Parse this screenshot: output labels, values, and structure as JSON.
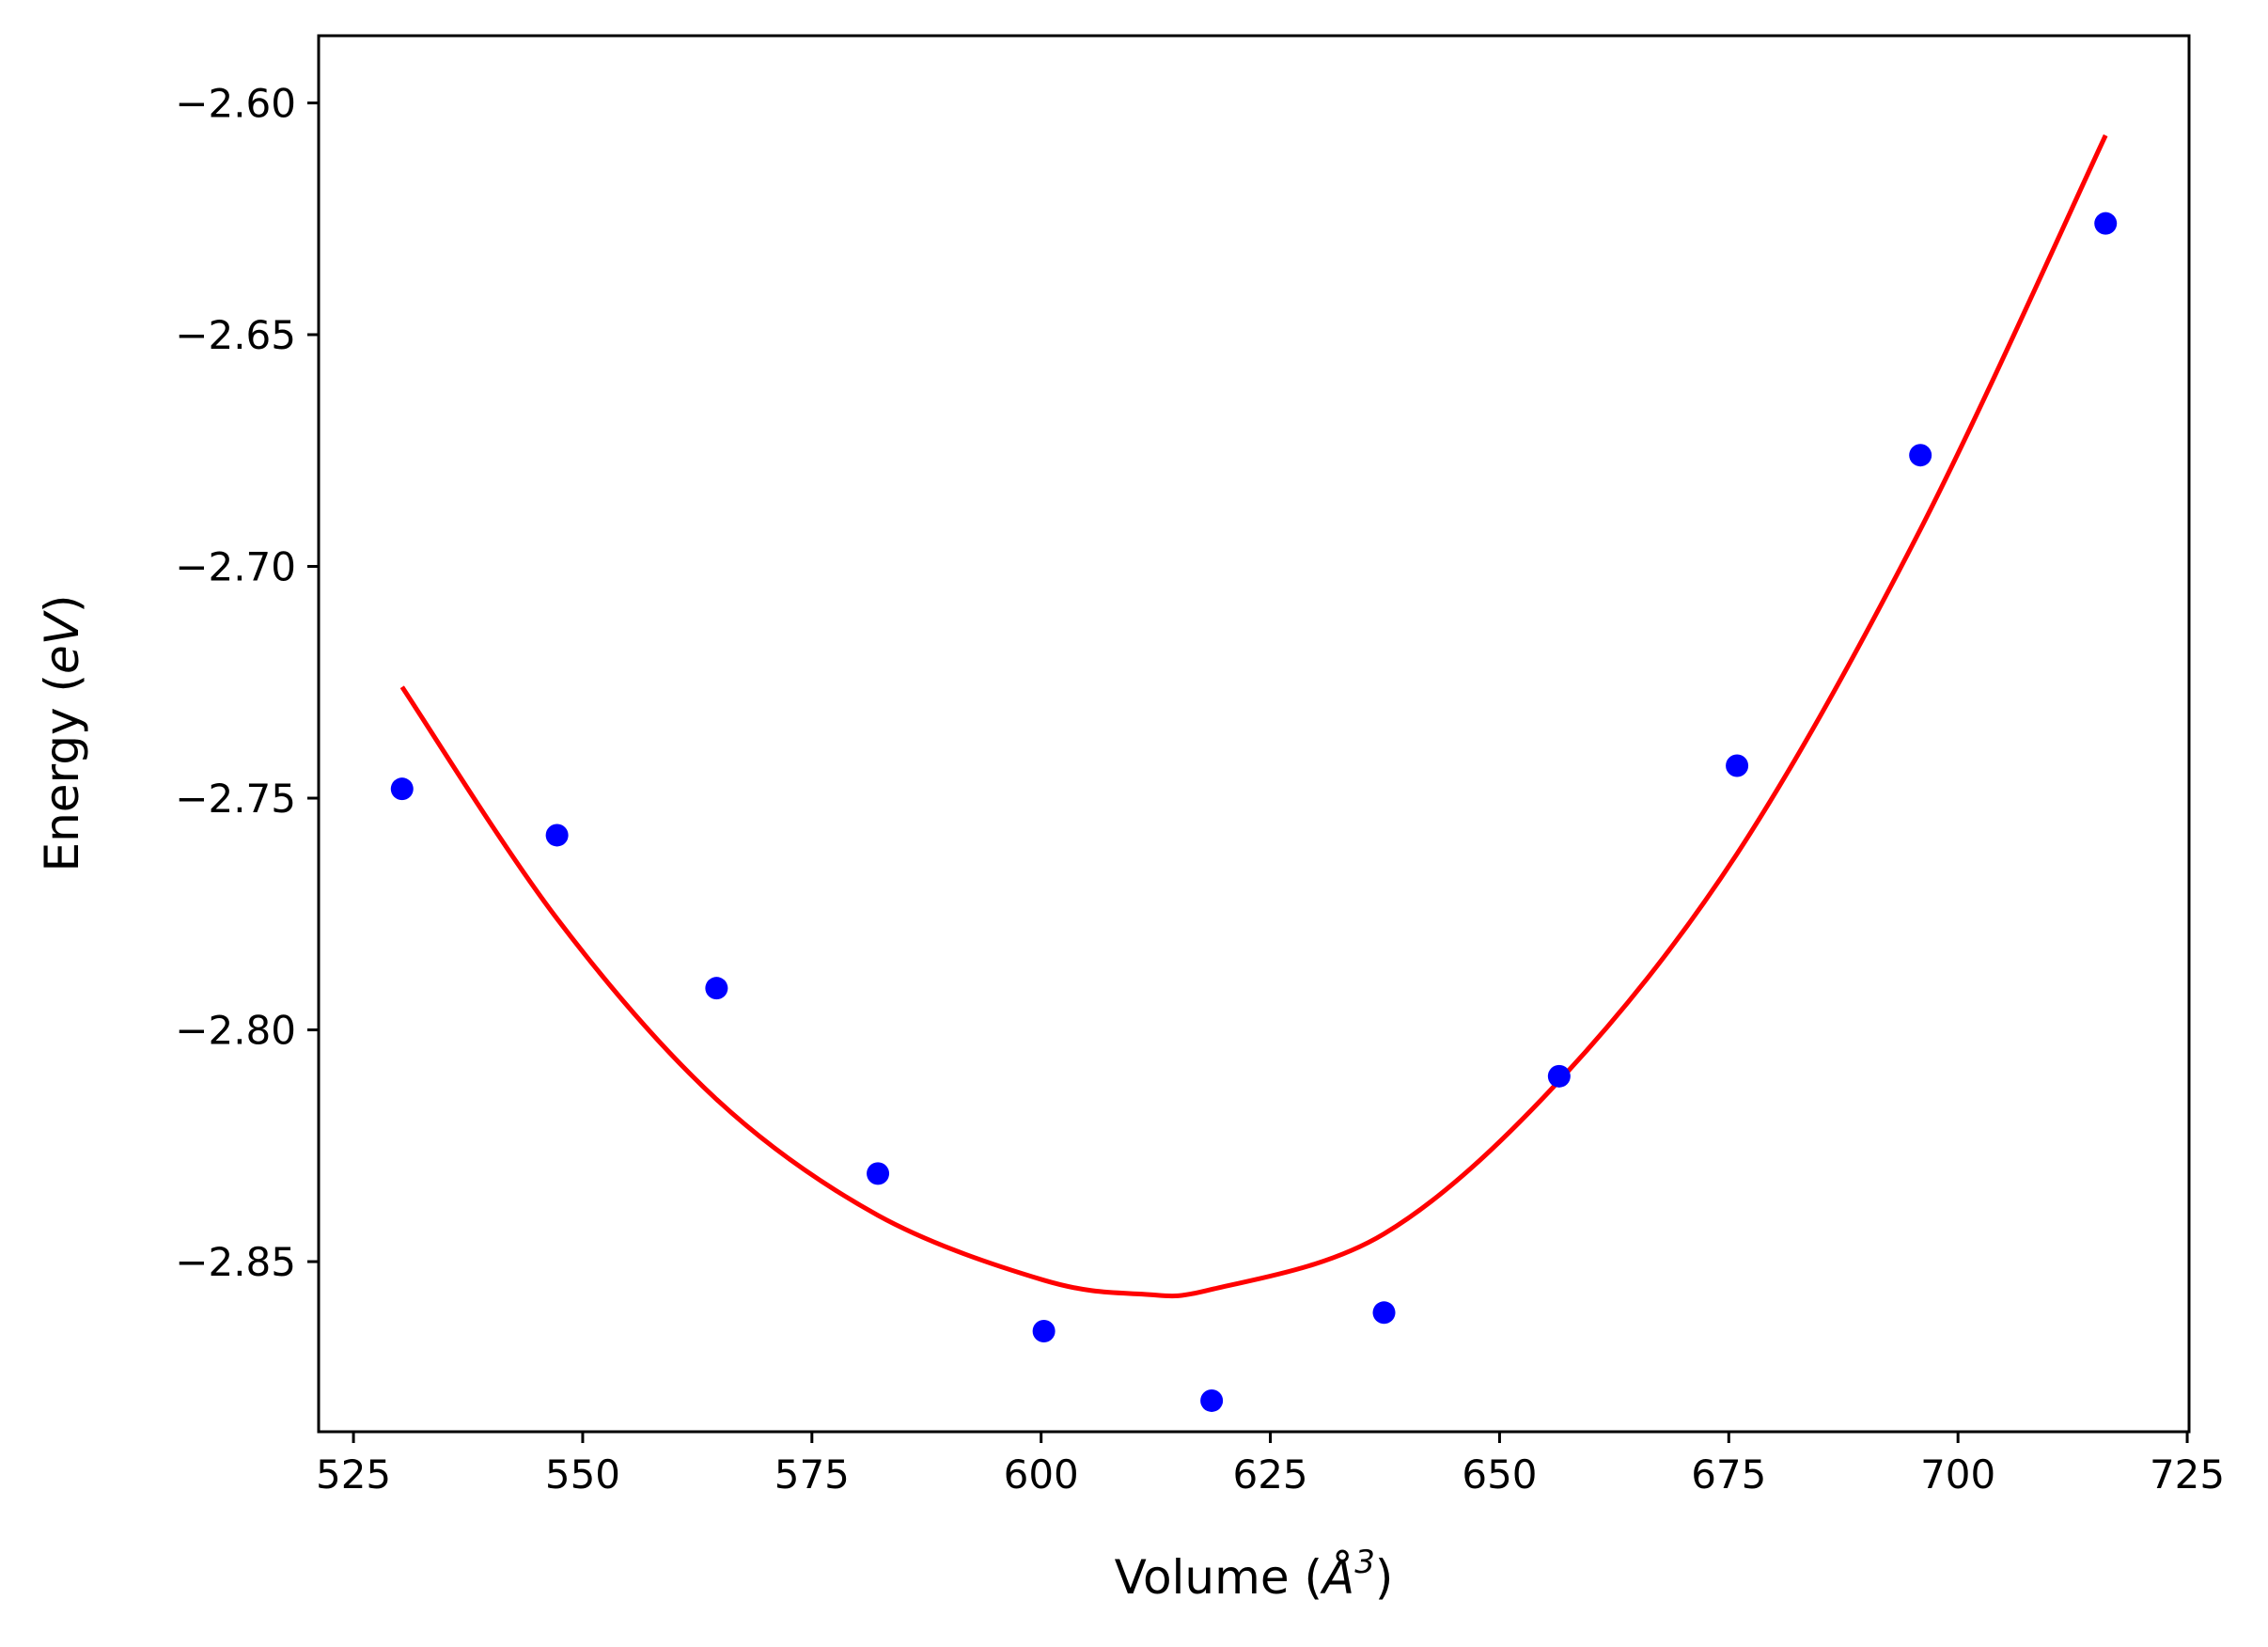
{
  "chart_data": {
    "type": "scatter",
    "xlabel": {
      "prefix": "Volume (",
      "symbol": "Å",
      "superscript": "3",
      "suffix": ")"
    },
    "ylabel": {
      "prefix": "Energy (",
      "symbol": "eV",
      "suffix": ")"
    },
    "xlim": [
      521.2,
      725.2
    ],
    "ylim": [
      -2.8867,
      -2.5855
    ],
    "x_ticks": [
      525,
      550,
      575,
      600,
      625,
      650,
      675,
      700,
      725
    ],
    "x_tick_labels": [
      "525",
      "550",
      "575",
      "600",
      "625",
      "650",
      "675",
      "700",
      "725"
    ],
    "y_ticks": [
      -2.6,
      -2.65,
      -2.7,
      -2.75,
      -2.8,
      -2.85
    ],
    "y_tick_labels": [
      "−2.60",
      "−2.65",
      "−2.70",
      "−2.75",
      "−2.80",
      "−2.85"
    ],
    "grid": false,
    "series": [
      {
        "kind": "scatter",
        "color": "#0000ff",
        "x": [
          530.3,
          547.2,
          564.6,
          582.2,
          600.3,
          618.6,
          637.4,
          656.5,
          675.9,
          695.9,
          716.1
        ],
        "y": [
          -2.748,
          -2.758,
          -2.791,
          -2.831,
          -2.865,
          -2.88,
          -2.861,
          -2.81,
          -2.743,
          -2.676,
          -2.626
        ]
      },
      {
        "kind": "line",
        "color": "#ff0000",
        "x": [
          530.3,
          547.2,
          564.6,
          582.2,
          600.3,
          611.0,
          618.6,
          637.4,
          656.5,
          675.9,
          695.9,
          716.1
        ],
        "y": [
          -2.726,
          -2.776,
          -2.815,
          -2.84,
          -2.854,
          -2.857,
          -2.856,
          -2.844,
          -2.811,
          -2.762,
          -2.692,
          -2.607
        ]
      }
    ]
  }
}
